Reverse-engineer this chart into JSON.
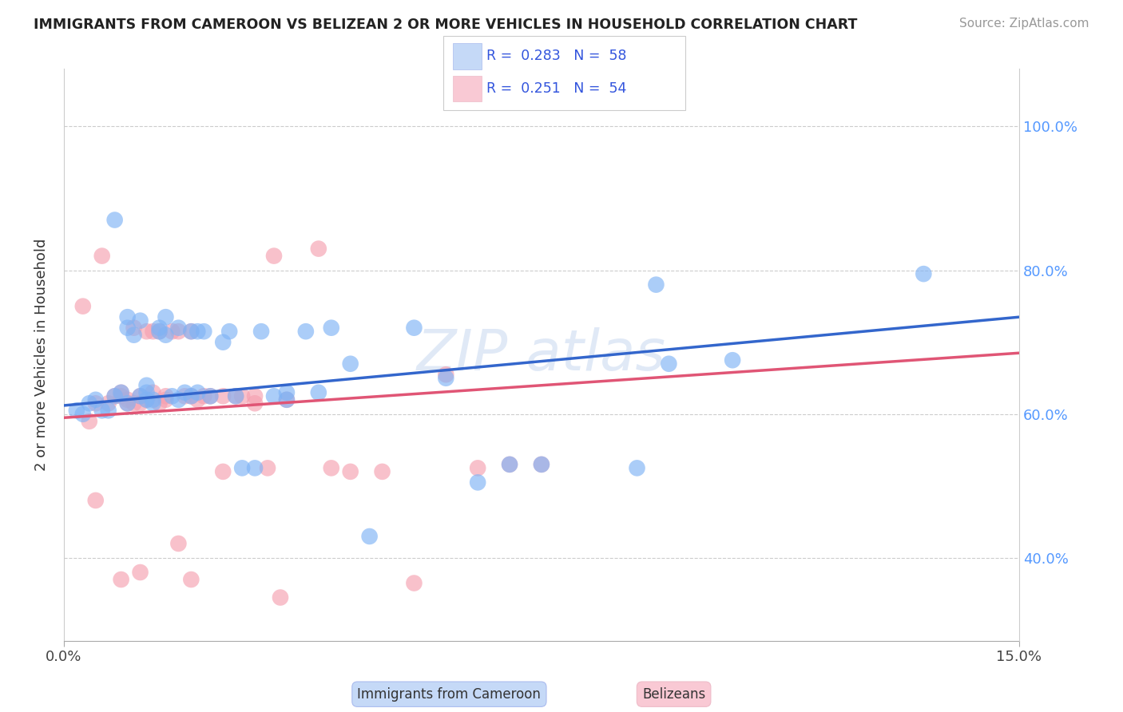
{
  "title": "IMMIGRANTS FROM CAMEROON VS BELIZEAN 2 OR MORE VEHICLES IN HOUSEHOLD CORRELATION CHART",
  "source": "Source: ZipAtlas.com",
  "ylabel_label": "2 or more Vehicles in Household",
  "y_ticks": [
    "40.0%",
    "60.0%",
    "80.0%",
    "100.0%"
  ],
  "y_tick_vals": [
    0.4,
    0.6,
    0.8,
    1.0
  ],
  "x_range": [
    0.0,
    0.15
  ],
  "y_range": [
    0.285,
    1.08
  ],
  "blue_color": "#7fb3f5",
  "pink_color": "#f5a0b0",
  "blue_line_color": "#3366cc",
  "pink_line_color": "#e05575",
  "legend_box_blue": "#c5d9f7",
  "legend_box_pink": "#f9c9d4",
  "blue_line": [
    [
      0.0,
      0.612
    ],
    [
      0.15,
      0.735
    ]
  ],
  "pink_line": [
    [
      0.0,
      0.595
    ],
    [
      0.15,
      0.685
    ]
  ],
  "blue_scatter": [
    [
      0.002,
      0.605
    ],
    [
      0.004,
      0.615
    ],
    [
      0.005,
      0.62
    ],
    [
      0.007,
      0.605
    ],
    [
      0.008,
      0.87
    ],
    [
      0.008,
      0.625
    ],
    [
      0.009,
      0.63
    ],
    [
      0.01,
      0.615
    ],
    [
      0.01,
      0.72
    ],
    [
      0.01,
      0.735
    ],
    [
      0.011,
      0.71
    ],
    [
      0.012,
      0.625
    ],
    [
      0.012,
      0.73
    ],
    [
      0.013,
      0.62
    ],
    [
      0.013,
      0.63
    ],
    [
      0.013,
      0.64
    ],
    [
      0.014,
      0.62
    ],
    [
      0.014,
      0.615
    ],
    [
      0.015,
      0.72
    ],
    [
      0.015,
      0.715
    ],
    [
      0.016,
      0.71
    ],
    [
      0.016,
      0.735
    ],
    [
      0.017,
      0.625
    ],
    [
      0.018,
      0.62
    ],
    [
      0.018,
      0.72
    ],
    [
      0.019,
      0.63
    ],
    [
      0.02,
      0.625
    ],
    [
      0.02,
      0.715
    ],
    [
      0.021,
      0.715
    ],
    [
      0.021,
      0.63
    ],
    [
      0.022,
      0.715
    ],
    [
      0.023,
      0.625
    ],
    [
      0.025,
      0.7
    ],
    [
      0.026,
      0.715
    ],
    [
      0.027,
      0.625
    ],
    [
      0.028,
      0.525
    ],
    [
      0.03,
      0.525
    ],
    [
      0.031,
      0.715
    ],
    [
      0.033,
      0.625
    ],
    [
      0.035,
      0.63
    ],
    [
      0.035,
      0.62
    ],
    [
      0.038,
      0.715
    ],
    [
      0.04,
      0.63
    ],
    [
      0.042,
      0.72
    ],
    [
      0.045,
      0.67
    ],
    [
      0.048,
      0.43
    ],
    [
      0.055,
      0.72
    ],
    [
      0.06,
      0.65
    ],
    [
      0.065,
      0.505
    ],
    [
      0.07,
      0.53
    ],
    [
      0.075,
      0.53
    ],
    [
      0.09,
      0.525
    ],
    [
      0.093,
      0.78
    ],
    [
      0.095,
      0.67
    ],
    [
      0.105,
      0.675
    ],
    [
      0.135,
      0.795
    ],
    [
      0.003,
      0.6
    ],
    [
      0.006,
      0.605
    ]
  ],
  "pink_scatter": [
    [
      0.003,
      0.75
    ],
    [
      0.004,
      0.59
    ],
    [
      0.005,
      0.615
    ],
    [
      0.006,
      0.82
    ],
    [
      0.007,
      0.615
    ],
    [
      0.008,
      0.625
    ],
    [
      0.009,
      0.625
    ],
    [
      0.009,
      0.63
    ],
    [
      0.01,
      0.615
    ],
    [
      0.01,
      0.62
    ],
    [
      0.011,
      0.615
    ],
    [
      0.011,
      0.72
    ],
    [
      0.012,
      0.625
    ],
    [
      0.012,
      0.615
    ],
    [
      0.013,
      0.62
    ],
    [
      0.013,
      0.715
    ],
    [
      0.014,
      0.63
    ],
    [
      0.014,
      0.715
    ],
    [
      0.015,
      0.615
    ],
    [
      0.015,
      0.715
    ],
    [
      0.016,
      0.625
    ],
    [
      0.016,
      0.62
    ],
    [
      0.017,
      0.715
    ],
    [
      0.018,
      0.715
    ],
    [
      0.019,
      0.625
    ],
    [
      0.02,
      0.625
    ],
    [
      0.02,
      0.715
    ],
    [
      0.021,
      0.62
    ],
    [
      0.022,
      0.625
    ],
    [
      0.023,
      0.625
    ],
    [
      0.025,
      0.52
    ],
    [
      0.025,
      0.625
    ],
    [
      0.027,
      0.625
    ],
    [
      0.028,
      0.625
    ],
    [
      0.03,
      0.615
    ],
    [
      0.03,
      0.625
    ],
    [
      0.032,
      0.525
    ],
    [
      0.033,
      0.82
    ],
    [
      0.035,
      0.62
    ],
    [
      0.04,
      0.83
    ],
    [
      0.042,
      0.525
    ],
    [
      0.045,
      0.52
    ],
    [
      0.05,
      0.52
    ],
    [
      0.06,
      0.655
    ],
    [
      0.065,
      0.525
    ],
    [
      0.07,
      0.53
    ],
    [
      0.075,
      0.53
    ],
    [
      0.018,
      0.42
    ],
    [
      0.02,
      0.37
    ],
    [
      0.034,
      0.345
    ],
    [
      0.055,
      0.365
    ],
    [
      0.012,
      0.38
    ],
    [
      0.005,
      0.48
    ],
    [
      0.009,
      0.37
    ]
  ]
}
